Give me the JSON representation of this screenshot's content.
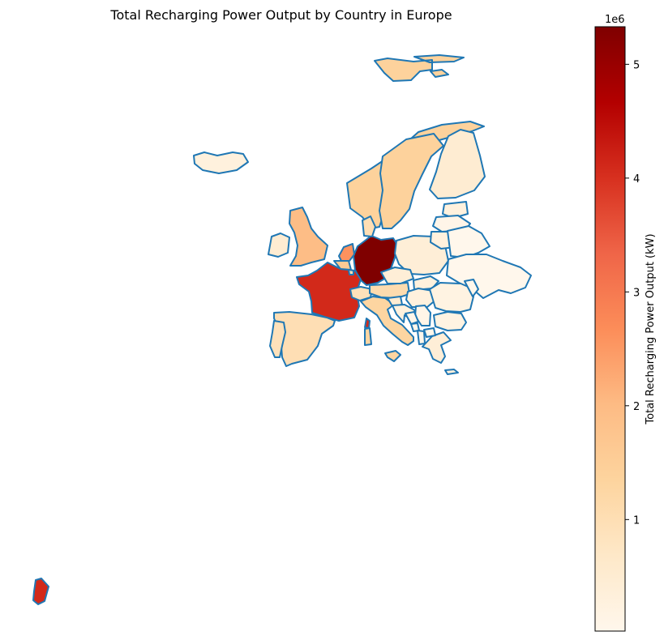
{
  "title": "Total Recharging Power Output by Country in Europe",
  "colorbar": {
    "label": "Total Recharging Power Output (kW)",
    "scale_label": "1e6",
    "ticks": [
      "1",
      "2",
      "3",
      "4",
      "5"
    ],
    "tick_values": [
      1,
      2,
      3,
      4,
      5
    ],
    "range": [
      0.02,
      5.33
    ],
    "colormap": "OrRd",
    "colormap_stops": [
      "#fff7ec",
      "#fee8c8",
      "#fdd49e",
      "#fdbb84",
      "#fc8d59",
      "#ef6548",
      "#d7301f",
      "#b30000",
      "#7f0000"
    ]
  },
  "outline_color": "#1f77b4",
  "chart_data": {
    "type": "choropleth",
    "title": "Total Recharging Power Output by Country in Europe",
    "colorbar_label": "Total Recharging Power Output (kW)",
    "unit_multiplier": "1e6",
    "value_range": [
      0.02,
      5.33
    ],
    "regions": [
      {
        "name": "Germany",
        "value": 5.33
      },
      {
        "name": "France",
        "value": 4.1
      },
      {
        "name": "French Guiana",
        "value": 4.1
      },
      {
        "name": "Corsica",
        "value": 4.1
      },
      {
        "name": "Netherlands",
        "value": 2.6
      },
      {
        "name": "United Kingdom",
        "value": 1.95
      },
      {
        "name": "Norway",
        "value": 1.4
      },
      {
        "name": "Sweden",
        "value": 1.4
      },
      {
        "name": "Svalbard",
        "value": 1.4
      },
      {
        "name": "Denmark",
        "value": 1.0
      },
      {
        "name": "Italy",
        "value": 1.3
      },
      {
        "name": "Spain",
        "value": 1.0
      },
      {
        "name": "Portugal",
        "value": 0.9
      },
      {
        "name": "Belgium",
        "value": 1.6
      },
      {
        "name": "Switzerland",
        "value": 0.9
      },
      {
        "name": "Austria",
        "value": 1.1
      },
      {
        "name": "Finland",
        "value": 0.5
      },
      {
        "name": "Iceland",
        "value": 0.3
      },
      {
        "name": "Ireland",
        "value": 0.5
      },
      {
        "name": "Poland",
        "value": 0.4
      },
      {
        "name": "Czechia",
        "value": 0.4
      },
      {
        "name": "Slovakia",
        "value": 0.3
      },
      {
        "name": "Hungary",
        "value": 0.3
      },
      {
        "name": "Slovenia",
        "value": 0.5
      },
      {
        "name": "Croatia",
        "value": 0.3
      },
      {
        "name": "Romania",
        "value": 0.2
      },
      {
        "name": "Bulgaria",
        "value": 0.2
      },
      {
        "name": "Greece",
        "value": 0.4
      },
      {
        "name": "Serbia",
        "value": 0.1
      },
      {
        "name": "Bosnia and Herzegovina",
        "value": 0.05
      },
      {
        "name": "Montenegro",
        "value": 0.05
      },
      {
        "name": "Albania",
        "value": 0.05
      },
      {
        "name": "North Macedonia",
        "value": 0.05
      },
      {
        "name": "Estonia",
        "value": 0.3
      },
      {
        "name": "Latvia",
        "value": 0.1
      },
      {
        "name": "Lithuania",
        "value": 0.3
      },
      {
        "name": "Belarus",
        "value": 0.02
      },
      {
        "name": "Ukraine",
        "value": 0.02
      },
      {
        "name": "Moldova",
        "value": 0.02
      },
      {
        "name": "Luxembourg",
        "value": 1.0
      },
      {
        "name": "Cyprus",
        "value": 0.3
      },
      {
        "name": "Sardinia",
        "value": 1.3
      },
      {
        "name": "Sicily",
        "value": 1.3
      }
    ]
  }
}
